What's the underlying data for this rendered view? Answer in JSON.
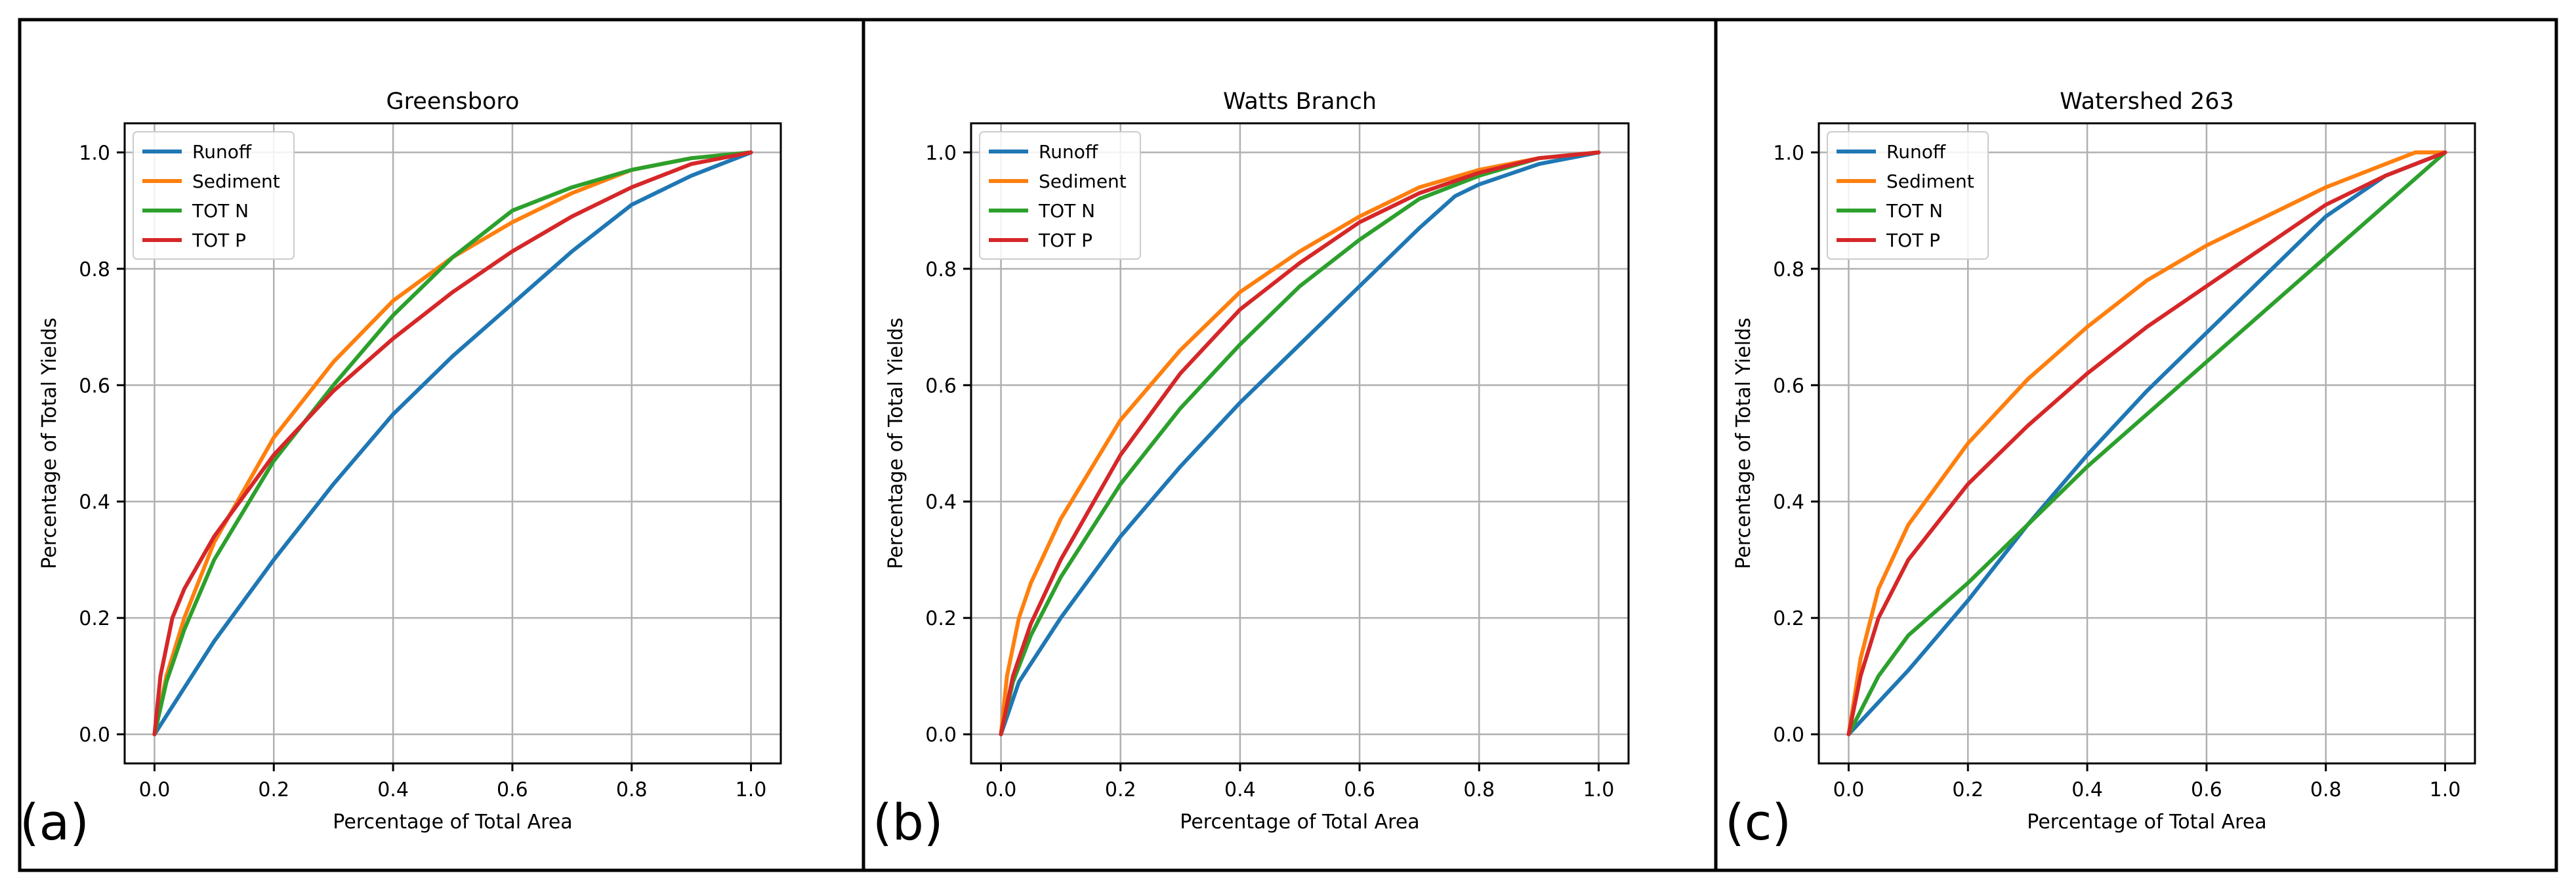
{
  "figure": {
    "panel_labels": [
      "(a)",
      "(b)",
      "(c)"
    ]
  },
  "colors": {
    "Runoff": "#1f77b4",
    "Sediment": "#ff7f0e",
    "TOT N": "#2ca02c",
    "TOT P": "#d62728",
    "grid": "#b0b0b0",
    "frame": "#000000"
  },
  "chart_data": [
    {
      "type": "line",
      "title": "Greensboro",
      "xlabel": "Percentage of Total Area",
      "ylabel": "Percentage of Total Yields",
      "xlim": [
        -0.05,
        1.05
      ],
      "ylim": [
        -0.05,
        1.05
      ],
      "xticks": [
        0.0,
        0.2,
        0.4,
        0.6,
        0.8,
        1.0
      ],
      "xtick_labels": [
        "0.0",
        "0.2",
        "0.4",
        "0.6",
        "0.8",
        "1.0"
      ],
      "yticks": [
        0.0,
        0.2,
        0.4,
        0.6,
        0.8,
        1.0
      ],
      "ytick_labels": [
        "0.0",
        "0.2",
        "0.4",
        "0.6",
        "0.8",
        "1.0"
      ],
      "grid": true,
      "legend": "upper-left",
      "series": [
        {
          "name": "Runoff",
          "x": [
            0,
            0.1,
            0.2,
            0.3,
            0.4,
            0.5,
            0.6,
            0.7,
            0.8,
            0.9,
            1.0
          ],
          "y": [
            0,
            0.16,
            0.3,
            0.43,
            0.55,
            0.65,
            0.74,
            0.83,
            0.91,
            0.96,
            1.0
          ]
        },
        {
          "name": "Sediment",
          "x": [
            0,
            0.02,
            0.05,
            0.1,
            0.2,
            0.3,
            0.4,
            0.5,
            0.6,
            0.7,
            0.8,
            0.9,
            1.0
          ],
          "y": [
            0,
            0.1,
            0.2,
            0.33,
            0.51,
            0.64,
            0.745,
            0.82,
            0.88,
            0.93,
            0.97,
            0.99,
            1.0
          ]
        },
        {
          "name": "TOT N",
          "x": [
            0,
            0.02,
            0.05,
            0.1,
            0.2,
            0.3,
            0.4,
            0.5,
            0.6,
            0.7,
            0.8,
            0.9,
            1.0
          ],
          "y": [
            0,
            0.09,
            0.18,
            0.3,
            0.47,
            0.6,
            0.72,
            0.82,
            0.9,
            0.94,
            0.97,
            0.99,
            1.0
          ]
        },
        {
          "name": "TOT P",
          "x": [
            0,
            0.01,
            0.03,
            0.05,
            0.1,
            0.2,
            0.3,
            0.4,
            0.5,
            0.6,
            0.7,
            0.8,
            0.9,
            1.0
          ],
          "y": [
            0,
            0.1,
            0.2,
            0.25,
            0.34,
            0.48,
            0.59,
            0.68,
            0.76,
            0.83,
            0.89,
            0.94,
            0.98,
            1.0
          ]
        }
      ]
    },
    {
      "type": "line",
      "title": "Watts Branch",
      "xlabel": "Percentage of Total Area",
      "ylabel": "Percentage of Total Yields",
      "xlim": [
        -0.05,
        1.05
      ],
      "ylim": [
        -0.05,
        1.05
      ],
      "xticks": [
        0.0,
        0.2,
        0.4,
        0.6,
        0.8,
        1.0
      ],
      "xtick_labels": [
        "0.0",
        "0.2",
        "0.4",
        "0.6",
        "0.8",
        "1.0"
      ],
      "yticks": [
        0.0,
        0.2,
        0.4,
        0.6,
        0.8,
        1.0
      ],
      "ytick_labels": [
        "0.0",
        "0.2",
        "0.4",
        "0.6",
        "0.8",
        "1.0"
      ],
      "grid": true,
      "legend": "upper-left",
      "series": [
        {
          "name": "Runoff",
          "x": [
            0,
            0.03,
            0.1,
            0.2,
            0.3,
            0.4,
            0.5,
            0.6,
            0.7,
            0.76,
            0.8,
            0.9,
            1.0
          ],
          "y": [
            0,
            0.09,
            0.2,
            0.34,
            0.46,
            0.57,
            0.67,
            0.77,
            0.87,
            0.925,
            0.945,
            0.98,
            1.0
          ]
        },
        {
          "name": "Sediment",
          "x": [
            0,
            0.01,
            0.03,
            0.05,
            0.1,
            0.2,
            0.3,
            0.4,
            0.5,
            0.6,
            0.7,
            0.8,
            0.9,
            1.0
          ],
          "y": [
            0,
            0.1,
            0.2,
            0.26,
            0.37,
            0.54,
            0.66,
            0.76,
            0.83,
            0.89,
            0.94,
            0.97,
            0.99,
            1.0
          ]
        },
        {
          "name": "TOT N",
          "x": [
            0,
            0.02,
            0.05,
            0.1,
            0.2,
            0.3,
            0.4,
            0.5,
            0.6,
            0.7,
            0.8,
            0.9,
            1.0
          ],
          "y": [
            0,
            0.09,
            0.17,
            0.27,
            0.43,
            0.56,
            0.67,
            0.77,
            0.85,
            0.92,
            0.96,
            0.99,
            1.0
          ]
        },
        {
          "name": "TOT P",
          "x": [
            0,
            0.02,
            0.05,
            0.1,
            0.2,
            0.3,
            0.4,
            0.5,
            0.6,
            0.7,
            0.8,
            0.9,
            1.0
          ],
          "y": [
            0,
            0.1,
            0.19,
            0.3,
            0.48,
            0.62,
            0.73,
            0.81,
            0.88,
            0.93,
            0.965,
            0.99,
            1.0
          ]
        }
      ]
    },
    {
      "type": "line",
      "title": "Watershed 263",
      "xlabel": "Percentage of Total Area",
      "ylabel": "Percentage of Total Yields",
      "xlim": [
        -0.05,
        1.05
      ],
      "ylim": [
        -0.05,
        1.05
      ],
      "xticks": [
        0.0,
        0.2,
        0.4,
        0.6,
        0.8,
        1.0
      ],
      "xtick_labels": [
        "0.0",
        "0.2",
        "0.4",
        "0.6",
        "0.8",
        "1.0"
      ],
      "yticks": [
        0.0,
        0.2,
        0.4,
        0.6,
        0.8,
        1.0
      ],
      "ytick_labels": [
        "0.0",
        "0.2",
        "0.4",
        "0.6",
        "0.8",
        "1.0"
      ],
      "grid": true,
      "legend": "upper-left",
      "series": [
        {
          "name": "Runoff",
          "x": [
            0,
            0.1,
            0.2,
            0.3,
            0.4,
            0.5,
            0.6,
            0.7,
            0.8,
            0.9,
            1.0
          ],
          "y": [
            0,
            0.11,
            0.23,
            0.36,
            0.48,
            0.59,
            0.69,
            0.79,
            0.89,
            0.96,
            1.0
          ]
        },
        {
          "name": "Sediment",
          "x": [
            0,
            0.02,
            0.05,
            0.1,
            0.2,
            0.3,
            0.4,
            0.5,
            0.6,
            0.7,
            0.8,
            0.9,
            0.95,
            1.0
          ],
          "y": [
            0,
            0.13,
            0.25,
            0.36,
            0.5,
            0.61,
            0.7,
            0.78,
            0.84,
            0.89,
            0.94,
            0.98,
            1.0,
            1.0
          ]
        },
        {
          "name": "TOT N",
          "x": [
            0,
            0.05,
            0.1,
            0.2,
            0.3,
            0.4,
            0.5,
            0.6,
            0.7,
            0.8,
            0.9,
            1.0
          ],
          "y": [
            0,
            0.1,
            0.17,
            0.26,
            0.36,
            0.46,
            0.55,
            0.64,
            0.73,
            0.82,
            0.91,
            1.0
          ]
        },
        {
          "name": "TOT P",
          "x": [
            0,
            0.02,
            0.05,
            0.1,
            0.2,
            0.3,
            0.4,
            0.5,
            0.6,
            0.7,
            0.8,
            0.9,
            1.0
          ],
          "y": [
            0,
            0.1,
            0.2,
            0.3,
            0.43,
            0.53,
            0.62,
            0.7,
            0.77,
            0.84,
            0.91,
            0.96,
            1.0
          ]
        }
      ]
    }
  ]
}
